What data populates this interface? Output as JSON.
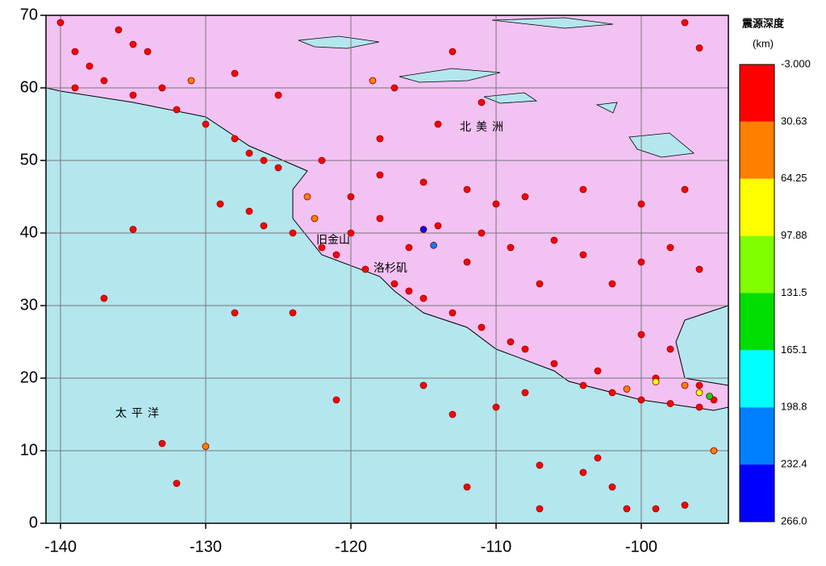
{
  "chart_data": {
    "type": "scatter",
    "annotations": [
      "北美洲",
      "太平洋",
      "旧金山",
      "洛杉矶"
    ],
    "xlim": [
      -141,
      -94
    ],
    "ylim": [
      0,
      70
    ],
    "xticks": [
      -140,
      -130,
      -120,
      -110,
      -100
    ],
    "yticks": [
      0,
      10,
      20,
      30,
      40,
      50,
      60,
      70
    ],
    "grid": true,
    "x": [
      -139,
      -138,
      -136,
      -135,
      -134,
      -137,
      -139,
      -135,
      -132,
      -130,
      -128,
      -127,
      -126,
      -125,
      -129,
      -127,
      -126,
      -124,
      -122,
      -121,
      -119,
      -117,
      -116,
      -115,
      -113,
      -111,
      -109,
      -108,
      -106,
      -104,
      -102,
      -100,
      -98,
      -96,
      -95,
      -101,
      -99,
      -97,
      -103,
      -104,
      -102,
      -108,
      -115,
      -113,
      -110,
      -121,
      -124,
      -128,
      -133,
      -132,
      -137,
      -135,
      -112,
      -107,
      -107,
      -120,
      -118,
      -115,
      -112,
      -110,
      -108,
      -118,
      -114,
      -111,
      -109,
      -106,
      -104,
      -100,
      -98,
      -96,
      -104,
      -100,
      -97,
      -102,
      -107,
      -112,
      -116,
      -120,
      -122,
      -118,
      -114,
      -125,
      -128,
      -133,
      -140,
      -117,
      -111,
      -96,
      -97,
      -113,
      -100,
      -98,
      -96,
      -103,
      -99,
      -115,
      -114.3,
      -95.3,
      -96,
      -99,
      -97,
      -101,
      -123,
      -122.5,
      -118.5,
      -131,
      -130,
      -95
    ],
    "y": [
      65,
      63,
      68,
      66,
      65,
      61,
      60,
      59,
      57,
      55,
      53,
      51,
      50,
      49,
      44,
      43,
      41,
      40,
      38,
      37,
      35,
      33,
      32,
      31,
      29,
      27,
      25,
      24,
      22,
      19,
      18,
      17,
      16.5,
      16,
      17,
      2,
      2,
      2.5,
      9,
      7,
      5,
      18,
      19,
      15,
      16,
      17,
      29,
      29,
      11,
      5.5,
      31,
      40.5,
      5,
      2,
      8,
      45,
      48,
      47,
      46,
      44,
      45,
      42,
      41,
      40,
      38,
      39,
      37,
      36,
      38,
      35,
      46,
      44,
      46,
      33,
      33,
      36,
      38,
      40,
      50,
      53,
      55,
      59,
      62,
      60,
      69,
      60,
      58,
      65.5,
      69,
      65,
      26,
      24,
      19,
      21,
      20,
      40.5,
      38.3,
      17.5,
      18,
      19.5,
      19,
      18.5,
      45,
      42,
      61,
      61,
      10.6,
      10
    ],
    "depth": [
      10,
      12,
      8,
      10,
      15,
      20,
      10,
      12,
      10,
      10,
      10,
      10,
      15,
      20,
      10,
      10,
      10,
      15,
      10,
      8,
      10,
      10,
      12,
      10,
      10,
      10,
      10,
      15,
      20,
      25,
      20,
      25,
      20,
      25,
      20,
      10,
      10,
      10,
      10,
      10,
      10,
      10,
      10,
      10,
      10,
      10,
      10,
      10,
      10,
      10,
      10,
      10,
      10,
      10,
      10,
      5,
      8,
      5,
      10,
      8,
      5,
      10,
      8,
      5,
      10,
      8,
      5,
      10,
      5,
      8,
      5,
      10,
      5,
      8,
      10,
      5,
      8,
      10,
      5,
      10,
      8,
      5,
      10,
      8,
      5,
      10,
      5,
      10,
      8,
      10,
      10,
      8,
      10,
      15,
      10,
      240,
      230,
      150,
      95,
      70,
      50,
      40,
      35,
      45,
      35,
      35,
      45,
      40
    ],
    "colorbar": {
      "title": "震源深度",
      "unit": "(km)",
      "levels": [
        {
          "value": -3,
          "label": "-3.000"
        },
        30.63,
        64.25,
        97.88,
        131.5,
        165.1,
        198.8,
        232.4,
        {
          "value": 266,
          "label": "266.0"
        }
      ],
      "colors": [
        "#ff0000",
        "#ff7f00",
        "#ffff00",
        "#80ff00",
        "#00dd00",
        "#00ffff",
        "#0080ff",
        "#0000ff"
      ]
    }
  }
}
